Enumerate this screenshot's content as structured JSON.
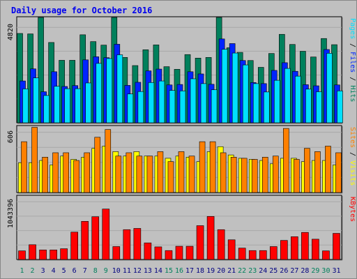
{
  "title": "Daily usage for October 2016",
  "colors": {
    "hits": "#00805c",
    "files": "#0024ff",
    "pages": "#00e0ff",
    "visits": "#ffff00",
    "sites": "#ff8000",
    "kbytes": "#ff0000",
    "weekend_day_label": "#00805c",
    "weekday_label": "#000080",
    "background": "#c0c0c0"
  },
  "chart_data": [
    {
      "type": "bar",
      "y_tick": "4820",
      "legend": [
        "Pages",
        "Files",
        "Hits"
      ],
      "categories": [
        "1",
        "2",
        "3",
        "4",
        "5",
        "6",
        "7",
        "8",
        "9",
        "10",
        "11",
        "12",
        "13",
        "14",
        "15",
        "16",
        "17",
        "18",
        "19",
        "20",
        "21",
        "22",
        "23",
        "24",
        "25",
        "26",
        "27",
        "28",
        "29",
        "30",
        "31"
      ],
      "weekend_days": [
        "1",
        "2",
        "8",
        "9",
        "15",
        "16",
        "22",
        "23",
        "29",
        "30"
      ],
      "ylim": [
        0,
        4820
      ],
      "series": [
        {
          "name": "Hits",
          "values": [
            4060,
            4040,
            4980,
            3650,
            2840,
            2840,
            4000,
            3690,
            3530,
            4890,
            2970,
            2600,
            3320,
            3540,
            2550,
            2430,
            3100,
            2940,
            2970,
            5010,
            3410,
            3200,
            2830,
            2520,
            3150,
            4020,
            3560,
            3250,
            2990,
            3830,
            3550
          ]
        },
        {
          "name": "Files",
          "values": [
            1900,
            2450,
            1410,
            2320,
            1650,
            1690,
            2860,
            3000,
            2960,
            3570,
            1700,
            1840,
            2360,
            2440,
            1720,
            1740,
            2320,
            2220,
            1750,
            3810,
            3600,
            2830,
            1830,
            1780,
            2380,
            2730,
            2340,
            1730,
            1680,
            3330,
            1720
          ]
        },
        {
          "name": "Pages",
          "values": [
            1540,
            2040,
            1240,
            1660,
            1550,
            1550,
            1810,
            2700,
            2920,
            3090,
            1310,
            1420,
            1830,
            1900,
            1470,
            1450,
            2000,
            1780,
            1500,
            3340,
            3170,
            2630,
            1780,
            1400,
            1930,
            2470,
            2120,
            1530,
            1410,
            3160,
            1450
          ]
        }
      ]
    },
    {
      "type": "bar",
      "y_tick": "606",
      "legend": [
        "Sites",
        "Visits"
      ],
      "categories": [
        "1",
        "2",
        "3",
        "4",
        "5",
        "6",
        "7",
        "8",
        "9",
        "10",
        "11",
        "12",
        "13",
        "14",
        "15",
        "16",
        "17",
        "18",
        "19",
        "20",
        "21",
        "22",
        "23",
        "24",
        "25",
        "26",
        "27",
        "28",
        "29",
        "30",
        "31"
      ],
      "ylim": [
        0,
        606
      ],
      "series": [
        {
          "name": "Visits",
          "values": [
            270,
            270,
            290,
            250,
            330,
            300,
            320,
            400,
            420,
            370,
            330,
            370,
            330,
            330,
            310,
            330,
            320,
            280,
            370,
            415,
            340,
            310,
            300,
            290,
            260,
            310,
            310,
            280,
            290,
            290,
            250
          ]
        },
        {
          "name": "Sites",
          "values": [
            460,
            590,
            320,
            360,
            360,
            290,
            360,
            500,
            570,
            330,
            360,
            330,
            330,
            370,
            280,
            370,
            330,
            460,
            460,
            360,
            320,
            310,
            300,
            320,
            330,
            580,
            300,
            400,
            370,
            420,
            360
          ]
        }
      ]
    },
    {
      "type": "bar",
      "y_tick": "1043396",
      "legend": [
        "KBytes"
      ],
      "categories": [
        "1",
        "2",
        "3",
        "4",
        "5",
        "6",
        "7",
        "8",
        "9",
        "10",
        "11",
        "12",
        "13",
        "14",
        "15",
        "16",
        "17",
        "18",
        "19",
        "20",
        "21",
        "22",
        "23",
        "24",
        "25",
        "26",
        "27",
        "28",
        "29",
        "30",
        "31"
      ],
      "ylim": [
        0,
        1043396
      ],
      "series": [
        {
          "name": "KBytes",
          "values": [
            140000,
            240000,
            155000,
            155000,
            175000,
            445000,
            620000,
            695000,
            820000,
            210000,
            485000,
            505000,
            270000,
            205000,
            145000,
            215000,
            215000,
            550000,
            700000,
            485000,
            320000,
            185000,
            145000,
            145000,
            210000,
            310000,
            370000,
            440000,
            330000,
            140000,
            425000
          ]
        }
      ]
    }
  ]
}
